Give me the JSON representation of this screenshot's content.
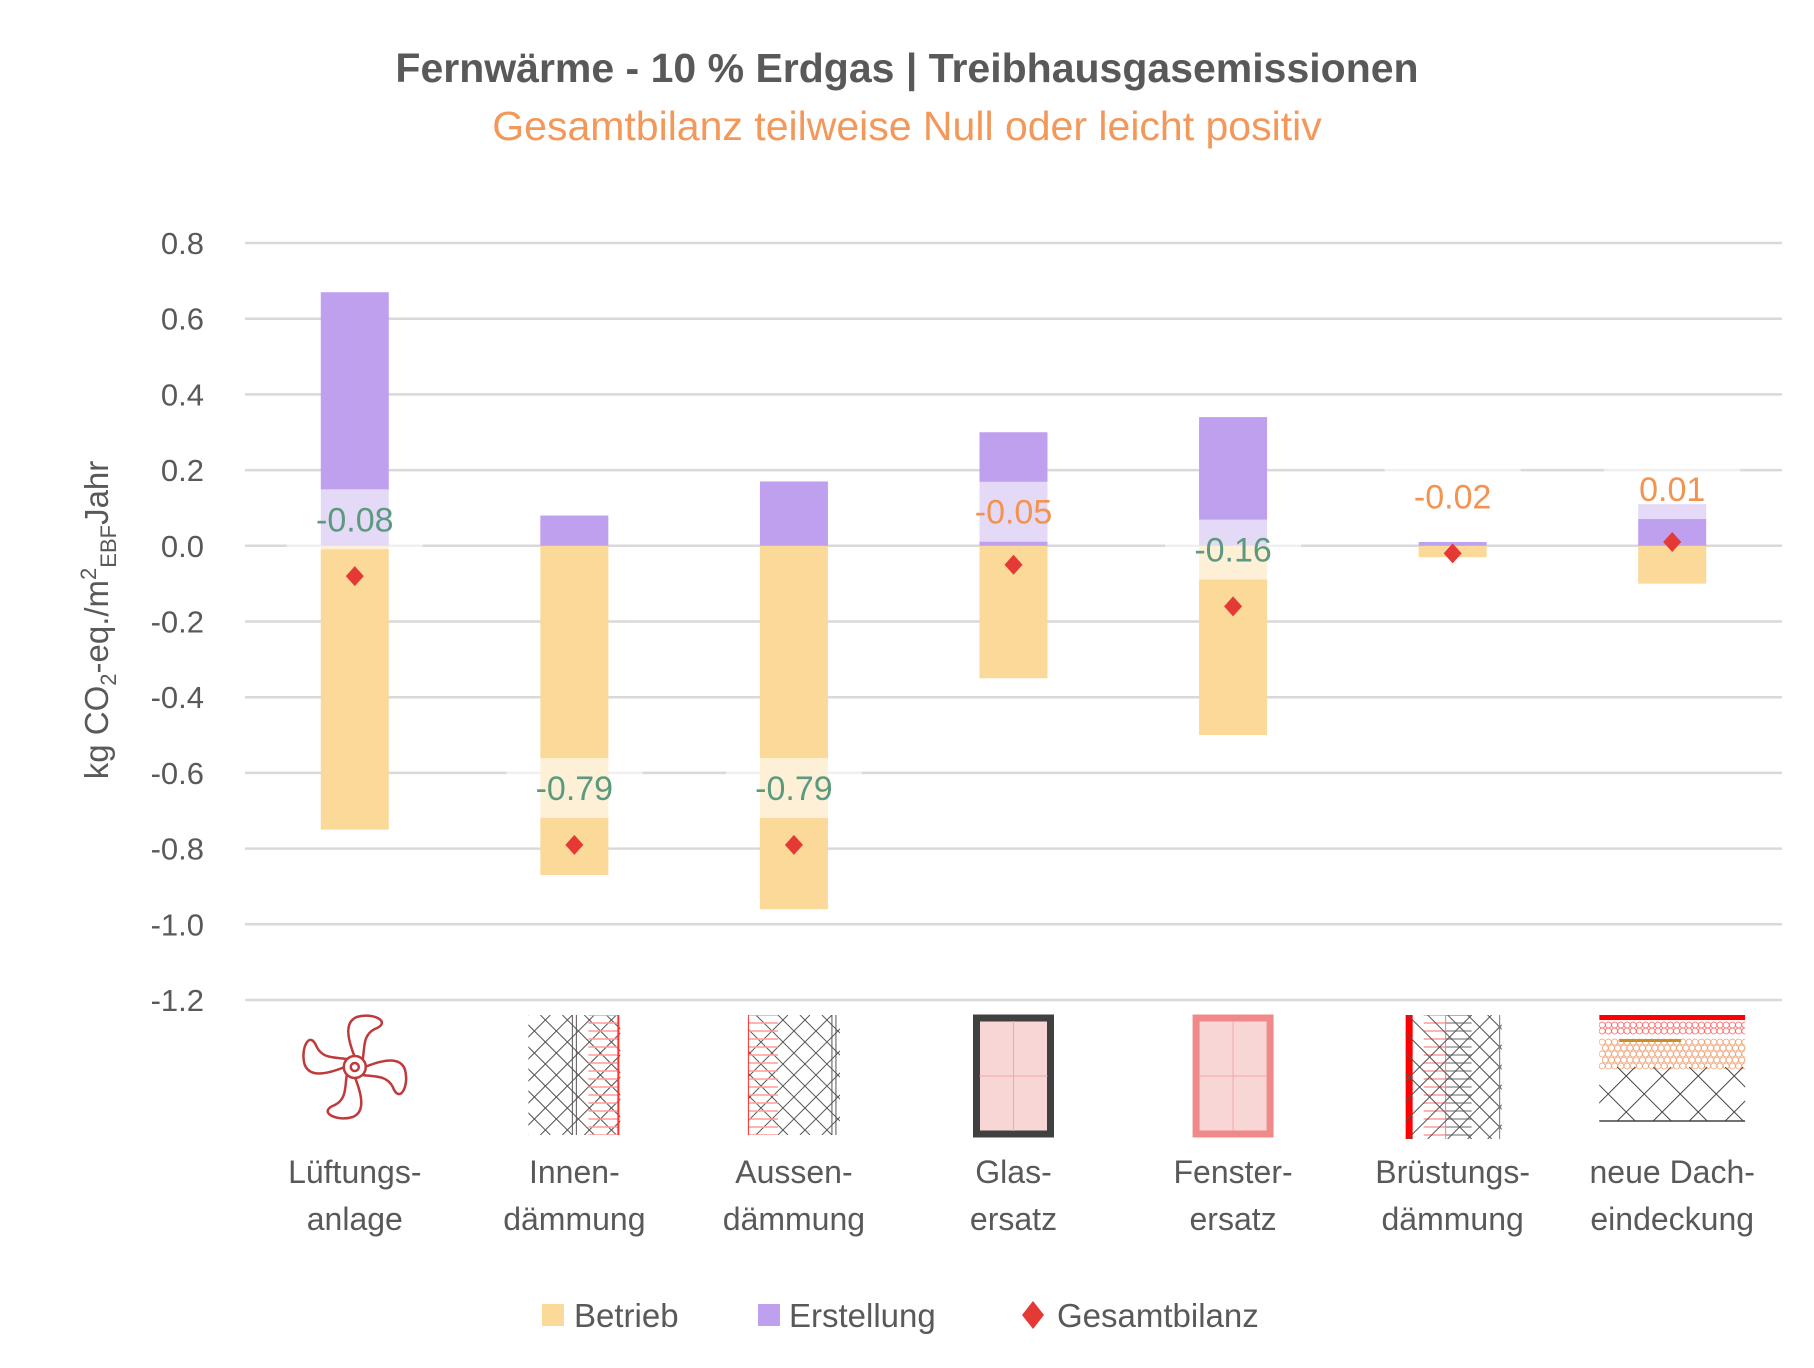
{
  "chart_data": {
    "type": "bar",
    "stacked": true,
    "title": "Fernwärme - 10 % Erdgas | Treibhausgasemissionen",
    "subtitle": "Gesamtbilanz teilweise Null oder leicht positiv",
    "ylabel": {
      "main": "kg CO",
      "sub1": "2",
      "mid": "-eq./m",
      "sup": "2",
      "sub2": "EBF",
      "end": "Jahr"
    },
    "ylim": [
      -1.2,
      0.8
    ],
    "yticks": [
      "0.8",
      "0.6",
      "0.4",
      "0.2",
      "0.0",
      "-0.2",
      "-0.4",
      "-0.6",
      "-0.8",
      "-1.0",
      "-1.2"
    ],
    "grid": true,
    "legend_position": "bottom",
    "categories": [
      {
        "line1": "Lüftungs-",
        "line2": "anlage",
        "icon": "fan-icon"
      },
      {
        "line1": "Innen-",
        "line2": "dämmung",
        "icon": "interior-insulation-icon"
      },
      {
        "line1": "Aussen-",
        "line2": "dämmung",
        "icon": "exterior-insulation-icon"
      },
      {
        "line1": "Glas-",
        "line2": "ersatz",
        "icon": "glass-window-icon"
      },
      {
        "line1": "Fenster-",
        "line2": "ersatz",
        "icon": "window-frame-icon"
      },
      {
        "line1": "Brüstungs-",
        "line2": "dämmung",
        "icon": "parapet-insulation-icon"
      },
      {
        "line1": "neue Dach-",
        "line2": "eindeckung",
        "icon": "roof-covering-icon"
      }
    ],
    "series": [
      {
        "name": "Betrieb",
        "type": "bar",
        "color": "#fbd999",
        "values": [
          -0.75,
          -0.87,
          -0.96,
          -0.35,
          -0.5,
          -0.03,
          -0.1
        ]
      },
      {
        "name": "Erstellung",
        "type": "bar",
        "color": "#bfa0ee",
        "values": [
          0.67,
          0.08,
          0.17,
          0.3,
          0.34,
          0.01,
          0.11
        ]
      },
      {
        "name": "Gesamtbilanz",
        "type": "scatter",
        "marker": "diamond",
        "color": "#e53935",
        "values": [
          -0.08,
          -0.79,
          -0.79,
          -0.05,
          -0.16,
          -0.02,
          0.01
        ]
      }
    ],
    "data_labels": [
      "-0.08",
      "-0.79",
      "-0.79",
      "-0.05",
      "-0.16",
      "-0.02",
      "0.01"
    ],
    "data_label_colors": {
      "strong_negative": "#5b9a7e",
      "near_zero": "#f4934f"
    }
  }
}
